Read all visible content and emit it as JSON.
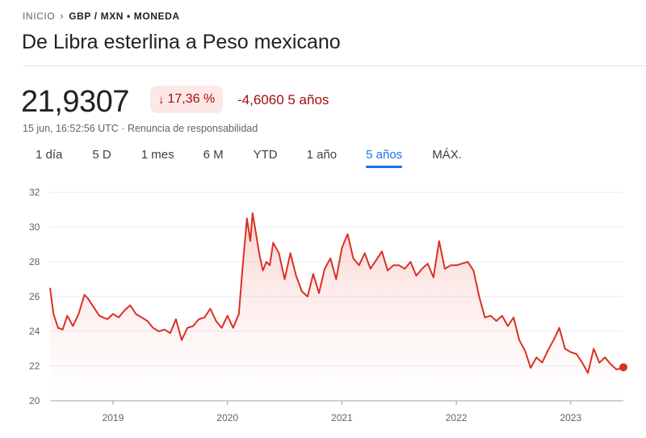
{
  "breadcrumb": {
    "home": "INICIO",
    "current": "GBP / MXN • MONEDA"
  },
  "title": "De Libra esterlina a Peso mexicano",
  "price": "21,9307",
  "change_percent": "17,36 %",
  "change_abs": "-4,6060 5 años",
  "timestamp": "15 jun, 16:52:56 UTC",
  "disclaimer": "Renuncia de responsabilidad",
  "tabs": [
    {
      "label": "1 día"
    },
    {
      "label": "5 D"
    },
    {
      "label": "1 mes"
    },
    {
      "label": "6 M"
    },
    {
      "label": "YTD"
    },
    {
      "label": "1 año"
    },
    {
      "label": "5 años"
    },
    {
      "label": "MÁX."
    }
  ],
  "active_tab": 6,
  "colors": {
    "line": "#d93025",
    "fill": "#fce8e6",
    "accent": "#1a73e8",
    "negative": "#a50e0e"
  },
  "chart_data": {
    "type": "area",
    "xlim": [
      2018.45,
      2023.46
    ],
    "ylim": [
      20,
      32
    ],
    "yticks": [
      20,
      22,
      24,
      26,
      28,
      30,
      32
    ],
    "xticks": [
      2019,
      2020,
      2021,
      2022,
      2023
    ],
    "xtick_labels": [
      "2019",
      "2020",
      "2021",
      "2022",
      "2023"
    ],
    "grid": true,
    "x": [
      2018.45,
      2018.48,
      2018.52,
      2018.56,
      2018.6,
      2018.65,
      2018.7,
      2018.75,
      2018.78,
      2018.83,
      2018.88,
      2018.95,
      2019.0,
      2019.05,
      2019.1,
      2019.15,
      2019.2,
      2019.25,
      2019.3,
      2019.35,
      2019.4,
      2019.45,
      2019.5,
      2019.55,
      2019.6,
      2019.65,
      2019.7,
      2019.75,
      2019.8,
      2019.85,
      2019.9,
      2019.95,
      2020.0,
      2020.05,
      2020.1,
      2020.13,
      2020.17,
      2020.2,
      2020.22,
      2020.25,
      2020.28,
      2020.31,
      2020.34,
      2020.37,
      2020.4,
      2020.45,
      2020.5,
      2020.55,
      2020.6,
      2020.65,
      2020.7,
      2020.75,
      2020.8,
      2020.85,
      2020.9,
      2020.95,
      2021.0,
      2021.05,
      2021.1,
      2021.15,
      2021.2,
      2021.25,
      2021.3,
      2021.35,
      2021.4,
      2021.45,
      2021.5,
      2021.55,
      2021.6,
      2021.65,
      2021.7,
      2021.75,
      2021.8,
      2021.85,
      2021.9,
      2021.95,
      2022.0,
      2022.05,
      2022.1,
      2022.15,
      2022.2,
      2022.25,
      2022.3,
      2022.35,
      2022.4,
      2022.45,
      2022.5,
      2022.55,
      2022.6,
      2022.65,
      2022.7,
      2022.75,
      2022.8,
      2022.85,
      2022.9,
      2022.95,
      2023.0,
      2023.05,
      2023.1,
      2023.15,
      2023.2,
      2023.25,
      2023.3,
      2023.35,
      2023.4,
      2023.46
    ],
    "y": [
      26.5,
      25.0,
      24.2,
      24.1,
      24.9,
      24.3,
      25.0,
      26.1,
      25.9,
      25.4,
      24.9,
      24.7,
      25.0,
      24.8,
      25.2,
      25.5,
      25.0,
      24.8,
      24.6,
      24.2,
      24.0,
      24.1,
      23.9,
      24.7,
      23.5,
      24.2,
      24.3,
      24.7,
      24.8,
      25.3,
      24.6,
      24.2,
      24.9,
      24.2,
      25.0,
      27.5,
      30.5,
      29.2,
      30.8,
      29.6,
      28.4,
      27.5,
      28.0,
      27.8,
      29.1,
      28.5,
      27.0,
      28.5,
      27.2,
      26.3,
      26.0,
      27.3,
      26.2,
      27.6,
      28.2,
      27.0,
      28.8,
      29.6,
      28.2,
      27.8,
      28.5,
      27.6,
      28.1,
      28.6,
      27.5,
      27.8,
      27.8,
      27.6,
      28.0,
      27.2,
      27.6,
      27.9,
      27.1,
      29.2,
      27.6,
      27.8,
      27.8,
      27.9,
      28.0,
      27.5,
      26.0,
      24.8,
      24.9,
      24.6,
      24.9,
      24.3,
      24.8,
      23.5,
      22.9,
      21.9,
      22.5,
      22.2,
      22.9,
      23.5,
      24.2,
      23.0,
      22.8,
      22.7,
      22.2,
      21.6,
      23.0,
      22.2,
      22.5,
      22.1,
      21.8,
      21.93
    ],
    "last_point": {
      "x": 2023.46,
      "y": 21.93
    }
  }
}
